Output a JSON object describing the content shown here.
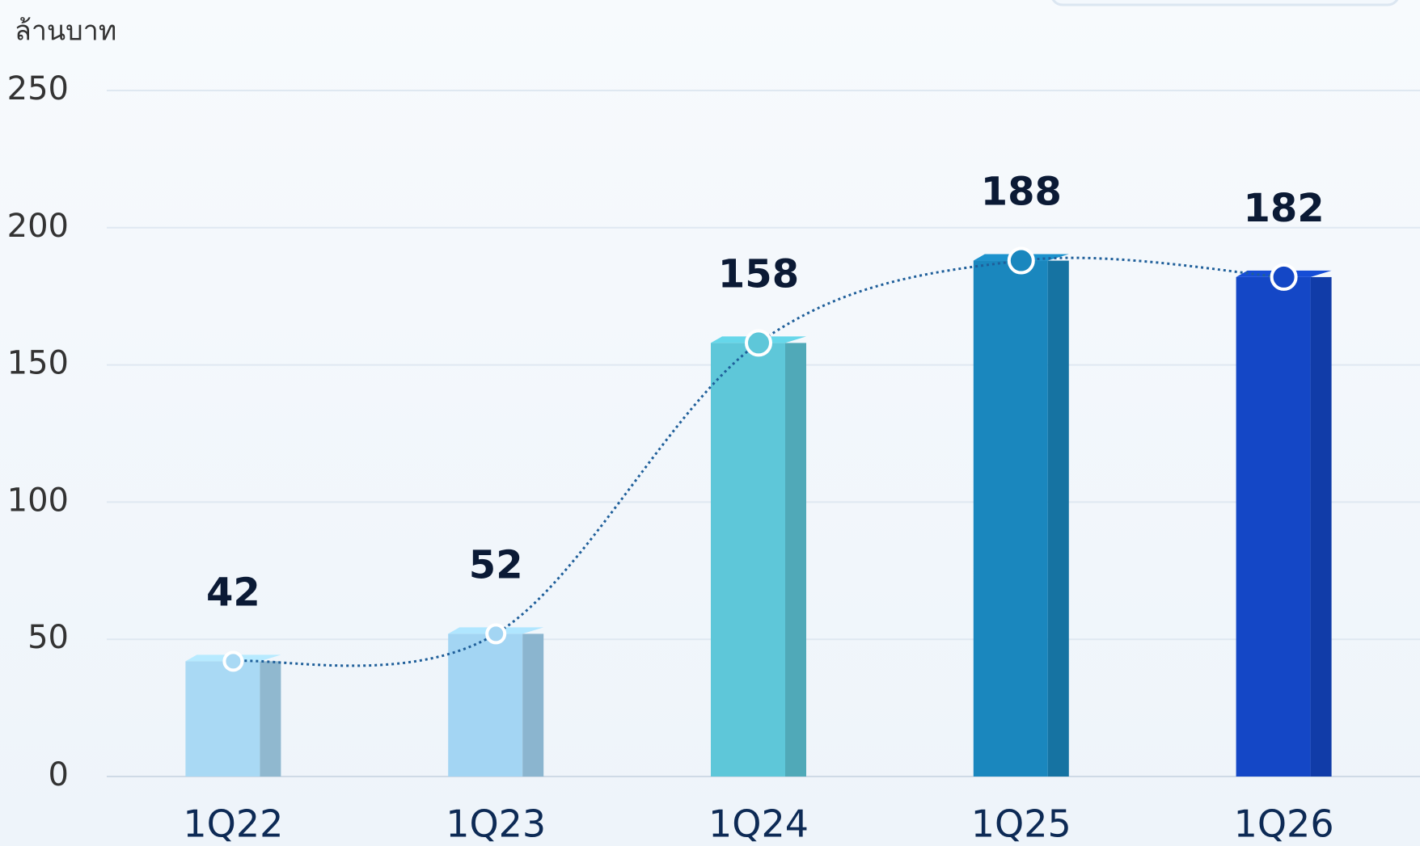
{
  "chart_data": {
    "type": "bar",
    "y_label": "ล้านบาท",
    "categories": [
      "1Q22",
      "1Q23",
      "1Q24",
      "1Q25",
      "1Q26"
    ],
    "values": [
      42,
      52,
      158,
      188,
      182
    ],
    "colors": [
      "#a9d9f4",
      "#a3d5f3",
      "#5ec7d9",
      "#1a87be",
      "#1447c6"
    ],
    "line_color": "#1f5f9a",
    "ylim": [
      0,
      250
    ],
    "yticks": [
      0,
      50,
      100,
      150,
      200,
      250
    ],
    "grid": true
  }
}
